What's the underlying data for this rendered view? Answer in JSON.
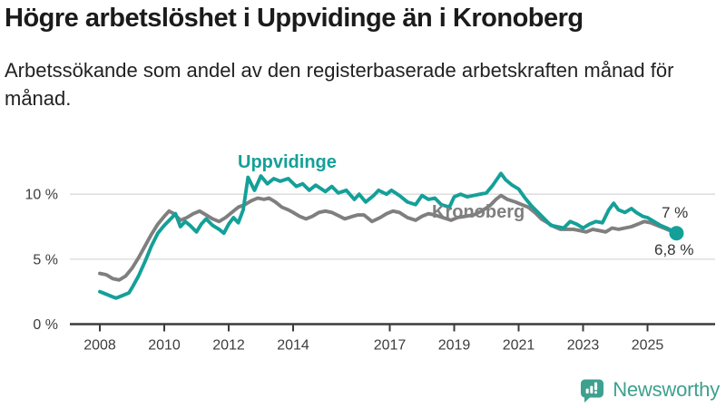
{
  "header": {
    "title": "Högre arbetslöshet i Uppvidinge än i Kronoberg",
    "subtitle": "Arbetssökande som andel av den registerbaserade arbetskraften månad för månad."
  },
  "chart_data": {
    "type": "line",
    "title": "Högre arbetslöshet i Uppvidinge än i Kronoberg",
    "subtitle": "Arbetssökande som andel av den registerbaserade arbetskraften månad för månad.",
    "unit": "%",
    "grid": "horizontal",
    "legend_position": "inline-labels",
    "xlim": [
      2007.1,
      2027.1
    ],
    "ylim": [
      0,
      13
    ],
    "x_ticks": [
      {
        "year": 2008,
        "label": "2008"
      },
      {
        "year": 2010,
        "label": "2010"
      },
      {
        "year": 2012,
        "label": "2012"
      },
      {
        "year": 2014,
        "label": "2014"
      },
      {
        "year": 2017,
        "label": "2017"
      },
      {
        "year": 2019,
        "label": "2019"
      },
      {
        "year": 2021,
        "label": "2021"
      },
      {
        "year": 2023,
        "label": "2023"
      },
      {
        "year": 2025,
        "label": "2025"
      }
    ],
    "y_ticks": [
      {
        "value": 0,
        "label": "0 %"
      },
      {
        "value": 5,
        "label": "5 %"
      },
      {
        "value": 10,
        "label": "10 %"
      }
    ],
    "series": [
      {
        "name": "Kronoberg",
        "color": "#7f7f7f",
        "end_label": "6,8 %",
        "end_value": 6.8,
        "end_dot": false,
        "points": [
          [
            2008.0,
            3.9
          ],
          [
            2008.2,
            3.8
          ],
          [
            2008.4,
            3.5
          ],
          [
            2008.6,
            3.4
          ],
          [
            2008.8,
            3.7
          ],
          [
            2009.0,
            4.3
          ],
          [
            2009.2,
            5.1
          ],
          [
            2009.4,
            6.0
          ],
          [
            2009.6,
            6.9
          ],
          [
            2009.8,
            7.7
          ],
          [
            2010.0,
            8.3
          ],
          [
            2010.15,
            8.7
          ],
          [
            2010.3,
            8.5
          ],
          [
            2010.5,
            8.0
          ],
          [
            2010.7,
            8.2
          ],
          [
            2010.9,
            8.5
          ],
          [
            2011.1,
            8.7
          ],
          [
            2011.3,
            8.4
          ],
          [
            2011.5,
            8.1
          ],
          [
            2011.7,
            7.9
          ],
          [
            2011.9,
            8.2
          ],
          [
            2012.1,
            8.6
          ],
          [
            2012.3,
            9.0
          ],
          [
            2012.5,
            9.2
          ],
          [
            2012.7,
            9.5
          ],
          [
            2012.9,
            9.7
          ],
          [
            2013.1,
            9.6
          ],
          [
            2013.25,
            9.7
          ],
          [
            2013.45,
            9.4
          ],
          [
            2013.65,
            9.0
          ],
          [
            2013.85,
            8.8
          ],
          [
            2014.0,
            8.6
          ],
          [
            2014.2,
            8.3
          ],
          [
            2014.4,
            8.1
          ],
          [
            2014.6,
            8.3
          ],
          [
            2014.8,
            8.6
          ],
          [
            2015.0,
            8.7
          ],
          [
            2015.2,
            8.6
          ],
          [
            2015.45,
            8.3
          ],
          [
            2015.6,
            8.1
          ],
          [
            2015.85,
            8.3
          ],
          [
            2016.0,
            8.4
          ],
          [
            2016.2,
            8.4
          ],
          [
            2016.45,
            7.9
          ],
          [
            2016.7,
            8.2
          ],
          [
            2016.9,
            8.5
          ],
          [
            2017.1,
            8.7
          ],
          [
            2017.3,
            8.6
          ],
          [
            2017.55,
            8.2
          ],
          [
            2017.8,
            8.0
          ],
          [
            2018.0,
            8.3
          ],
          [
            2018.2,
            8.5
          ],
          [
            2018.4,
            8.4
          ],
          [
            2018.65,
            8.2
          ],
          [
            2018.9,
            8.0
          ],
          [
            2019.1,
            8.2
          ],
          [
            2019.35,
            8.3
          ],
          [
            2019.6,
            8.4
          ],
          [
            2019.85,
            8.7
          ],
          [
            2020.1,
            9.1
          ],
          [
            2020.3,
            9.6
          ],
          [
            2020.45,
            9.9
          ],
          [
            2020.65,
            9.6
          ],
          [
            2020.9,
            9.4
          ],
          [
            2021.1,
            9.2
          ],
          [
            2021.3,
            9.0
          ],
          [
            2021.5,
            8.6
          ],
          [
            2021.7,
            8.1
          ],
          [
            2021.9,
            7.8
          ],
          [
            2022.1,
            7.5
          ],
          [
            2022.3,
            7.3
          ],
          [
            2022.5,
            7.3
          ],
          [
            2022.7,
            7.3
          ],
          [
            2022.9,
            7.2
          ],
          [
            2023.1,
            7.1
          ],
          [
            2023.3,
            7.3
          ],
          [
            2023.5,
            7.2
          ],
          [
            2023.7,
            7.1
          ],
          [
            2023.9,
            7.4
          ],
          [
            2024.1,
            7.3
          ],
          [
            2024.3,
            7.4
          ],
          [
            2024.5,
            7.5
          ],
          [
            2024.7,
            7.7
          ],
          [
            2024.9,
            7.9
          ],
          [
            2025.1,
            7.8
          ],
          [
            2025.3,
            7.6
          ],
          [
            2025.5,
            7.4
          ],
          [
            2025.7,
            7.2
          ],
          [
            2025.9,
            6.8
          ]
        ]
      },
      {
        "name": "Uppvidinge",
        "color": "#14a099",
        "end_label": "7 %",
        "end_value": 7.0,
        "end_dot": true,
        "points": [
          [
            2008.0,
            2.5
          ],
          [
            2008.2,
            2.3
          ],
          [
            2008.4,
            2.1
          ],
          [
            2008.5,
            2.0
          ],
          [
            2008.7,
            2.2
          ],
          [
            2008.9,
            2.4
          ],
          [
            2009.0,
            2.8
          ],
          [
            2009.2,
            3.7
          ],
          [
            2009.4,
            4.8
          ],
          [
            2009.6,
            6.0
          ],
          [
            2009.8,
            7.0
          ],
          [
            2010.0,
            7.6
          ],
          [
            2010.2,
            8.1
          ],
          [
            2010.35,
            8.5
          ],
          [
            2010.5,
            7.5
          ],
          [
            2010.65,
            7.9
          ],
          [
            2010.8,
            7.6
          ],
          [
            2011.0,
            7.1
          ],
          [
            2011.15,
            7.7
          ],
          [
            2011.3,
            8.1
          ],
          [
            2011.5,
            7.6
          ],
          [
            2011.7,
            7.3
          ],
          [
            2011.85,
            7.0
          ],
          [
            2012.0,
            7.7
          ],
          [
            2012.15,
            8.2
          ],
          [
            2012.3,
            7.8
          ],
          [
            2012.45,
            8.8
          ],
          [
            2012.6,
            11.3
          ],
          [
            2012.8,
            10.3
          ],
          [
            2013.0,
            11.4
          ],
          [
            2013.2,
            10.8
          ],
          [
            2013.4,
            11.2
          ],
          [
            2013.6,
            11.0
          ],
          [
            2013.85,
            11.2
          ],
          [
            2014.1,
            10.6
          ],
          [
            2014.3,
            10.8
          ],
          [
            2014.5,
            10.3
          ],
          [
            2014.7,
            10.7
          ],
          [
            2015.0,
            10.2
          ],
          [
            2015.2,
            10.6
          ],
          [
            2015.4,
            10.1
          ],
          [
            2015.65,
            10.3
          ],
          [
            2015.9,
            9.6
          ],
          [
            2016.05,
            10.0
          ],
          [
            2016.25,
            9.4
          ],
          [
            2016.5,
            9.9
          ],
          [
            2016.65,
            10.3
          ],
          [
            2016.9,
            10.0
          ],
          [
            2017.05,
            10.3
          ],
          [
            2017.3,
            9.9
          ],
          [
            2017.55,
            9.4
          ],
          [
            2017.8,
            9.2
          ],
          [
            2018.0,
            9.9
          ],
          [
            2018.2,
            9.6
          ],
          [
            2018.4,
            9.7
          ],
          [
            2018.6,
            9.2
          ],
          [
            2018.85,
            9.0
          ],
          [
            2019.0,
            9.8
          ],
          [
            2019.2,
            10.0
          ],
          [
            2019.4,
            9.8
          ],
          [
            2019.6,
            9.9
          ],
          [
            2019.8,
            10.0
          ],
          [
            2020.0,
            10.1
          ],
          [
            2020.2,
            10.7
          ],
          [
            2020.45,
            11.6
          ],
          [
            2020.6,
            11.1
          ],
          [
            2020.8,
            10.7
          ],
          [
            2021.0,
            10.4
          ],
          [
            2021.2,
            9.7
          ],
          [
            2021.4,
            9.1
          ],
          [
            2021.6,
            8.6
          ],
          [
            2021.8,
            8.1
          ],
          [
            2022.0,
            7.6
          ],
          [
            2022.2,
            7.5
          ],
          [
            2022.4,
            7.4
          ],
          [
            2022.6,
            7.9
          ],
          [
            2022.8,
            7.7
          ],
          [
            2023.0,
            7.4
          ],
          [
            2023.2,
            7.7
          ],
          [
            2023.4,
            7.9
          ],
          [
            2023.6,
            7.8
          ],
          [
            2023.8,
            8.8
          ],
          [
            2023.95,
            9.3
          ],
          [
            2024.1,
            8.8
          ],
          [
            2024.3,
            8.6
          ],
          [
            2024.5,
            8.9
          ],
          [
            2024.65,
            8.6
          ],
          [
            2024.85,
            8.3
          ],
          [
            2025.0,
            8.2
          ],
          [
            2025.2,
            7.9
          ],
          [
            2025.4,
            7.6
          ],
          [
            2025.6,
            7.4
          ],
          [
            2025.75,
            7.2
          ],
          [
            2025.9,
            7.0
          ]
        ]
      }
    ]
  },
  "colors": {
    "accent_teal": "#14a099",
    "neutral_gray": "#7f7f7f",
    "axis": "#3b3b3b",
    "gridline": "#dadada",
    "logo": "#3ea08f"
  },
  "logo": {
    "text": "Newsworthy",
    "icon": "speech-bubble-bar-chart-icon"
  }
}
